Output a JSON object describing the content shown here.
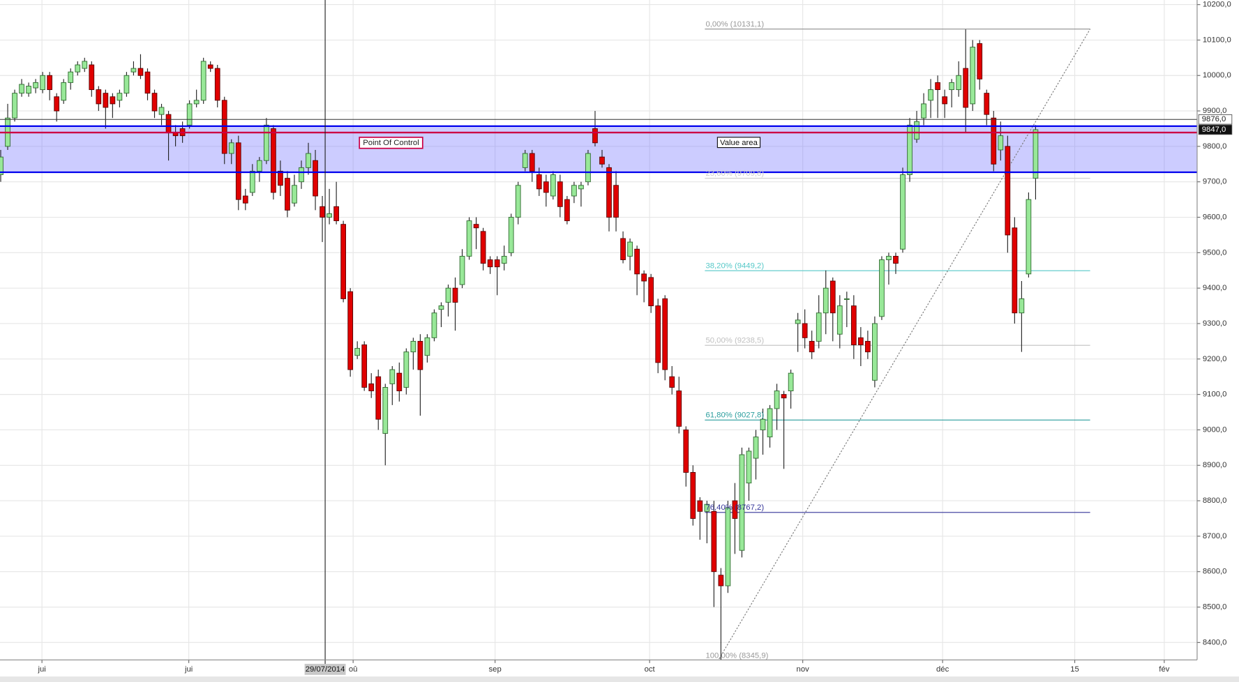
{
  "chart_data": {
    "type": "candlestick",
    "up_color": "#98e898",
    "down_color": "#e00000",
    "xlim": [
      -0.1,
      171.1
    ],
    "ylim": [
      8351,
      10213
    ],
    "grid": true,
    "xticks": [
      {
        "value": 5.9,
        "label": "jui"
      },
      {
        "value": 26.9,
        "label": "jui"
      },
      {
        "value": 50.4,
        "label": "oû"
      },
      {
        "value": 70.7,
        "label": "sep"
      },
      {
        "value": 92.8,
        "label": "oct"
      },
      {
        "value": 114.7,
        "label": "nov"
      },
      {
        "value": 134.7,
        "label": "déc"
      },
      {
        "value": 153.6,
        "label": "15"
      },
      {
        "value": 166.4,
        "label": "fév"
      }
    ],
    "yticks": [
      {
        "value": 8400,
        "label": "8400,0"
      },
      {
        "value": 8500,
        "label": "8500,0"
      },
      {
        "value": 8600,
        "label": "8600,0"
      },
      {
        "value": 8700,
        "label": "8700,0"
      },
      {
        "value": 8800,
        "label": "8800,0"
      },
      {
        "value": 8900,
        "label": "8900,0"
      },
      {
        "value": 9000,
        "label": "9000,0"
      },
      {
        "value": 9100,
        "label": "9100,0"
      },
      {
        "value": 9200,
        "label": "9200,0"
      },
      {
        "value": 9300,
        "label": "9300,0"
      },
      {
        "value": 9400,
        "label": "9400,0"
      },
      {
        "value": 9500,
        "label": "9500,0"
      },
      {
        "value": 9600,
        "label": "9600,0"
      },
      {
        "value": 9700,
        "label": "9700,0"
      },
      {
        "value": 9800,
        "label": "9800,0"
      },
      {
        "value": 9900,
        "label": "9900,0"
      },
      {
        "value": 10000,
        "label": "10000,0"
      },
      {
        "value": 10100,
        "label": "10100,0"
      },
      {
        "value": 10200,
        "label": "10200,0"
      }
    ],
    "price_labels": [
      {
        "value": 9876,
        "label": "9876,0"
      },
      {
        "value": 9847,
        "label": "9847,0"
      }
    ],
    "value_area": {
      "label": "Value area",
      "high": 9857,
      "low": 9727,
      "color": "#0000ee",
      "x": 102.5
    },
    "poc": {
      "label": "Point Of Control",
      "value": 9839,
      "color": "#cc0044",
      "x": 51.3
    },
    "cursor": {
      "x": 46.4,
      "label": "29/07/2014"
    },
    "fib": {
      "x": [
        100.7,
        155.8
      ],
      "trend_x": [
        102.5,
        155.8
      ],
      "levels": [
        {
          "value": 10131.1,
          "label": "0,00% (10131,1)",
          "color": "#999999"
        },
        {
          "value": 9709.8,
          "label": "23,60% (9709,8)",
          "color": "#cccccc"
        },
        {
          "value": 9449.2,
          "label": "38,20% (9449,2)",
          "color": "#55c8c8"
        },
        {
          "value": 9238.5,
          "label": "50,00% (9238,5)",
          "color": "#c0c0c0"
        },
        {
          "value": 9027.8,
          "label": "61,80% (9027,8)",
          "color": "#2a9d9d"
        },
        {
          "value": 8767.2,
          "label": "76,40% (8767,2)",
          "color": "#333399"
        },
        {
          "value": 8345.9,
          "label": "100,00% (8345,9)",
          "color": "#999999"
        }
      ]
    },
    "ohlc": [
      [
        9720,
        9790,
        9700,
        9770
      ],
      [
        9800,
        9920,
        9790,
        9880
      ],
      [
        9880,
        9960,
        9870,
        9950
      ],
      [
        9950,
        9990,
        9940,
        9975
      ],
      [
        9950,
        9980,
        9940,
        9970
      ],
      [
        9965,
        9990,
        9950,
        9980
      ],
      [
        9960,
        10010,
        9950,
        10000
      ],
      [
        10000,
        10010,
        9930,
        9960
      ],
      [
        9940,
        9950,
        9870,
        9900
      ],
      [
        9930,
        9990,
        9920,
        9980
      ],
      [
        9980,
        10020,
        9960,
        10010
      ],
      [
        10010,
        10040,
        10000,
        10030
      ],
      [
        10020,
        10050,
        10010,
        10040
      ],
      [
        10030,
        10040,
        9940,
        9960
      ],
      [
        9960,
        9970,
        9900,
        9920
      ],
      [
        9950,
        9960,
        9850,
        9910
      ],
      [
        9940,
        9950,
        9880,
        9920
      ],
      [
        9930,
        9960,
        9910,
        9950
      ],
      [
        9950,
        10010,
        9940,
        10000
      ],
      [
        10010,
        10040,
        10000,
        10020
      ],
      [
        10020,
        10060,
        9990,
        10000
      ],
      [
        10010,
        10020,
        9930,
        9950
      ],
      [
        9950,
        9960,
        9880,
        9900
      ],
      [
        9890,
        9920,
        9860,
        9910
      ],
      [
        9890,
        9900,
        9760,
        9840
      ],
      [
        9840,
        9860,
        9800,
        9830
      ],
      [
        9850,
        9870,
        9810,
        9830
      ],
      [
        9860,
        9930,
        9850,
        9920
      ],
      [
        9920,
        9960,
        9910,
        9930
      ],
      [
        9930,
        10050,
        9920,
        10040
      ],
      [
        10030,
        10040,
        10010,
        10020
      ],
      [
        10020,
        10030,
        9910,
        9930
      ],
      [
        9930,
        9940,
        9750,
        9780
      ],
      [
        9780,
        9820,
        9750,
        9810
      ],
      [
        9810,
        9830,
        9620,
        9650
      ],
      [
        9660,
        9680,
        9620,
        9640
      ],
      [
        9670,
        9750,
        9660,
        9730
      ],
      [
        9730,
        9770,
        9700,
        9760
      ],
      [
        9760,
        9880,
        9750,
        9860
      ],
      [
        9850,
        9860,
        9650,
        9670
      ],
      [
        9730,
        9760,
        9660,
        9690
      ],
      [
        9710,
        9730,
        9600,
        9620
      ],
      [
        9640,
        9720,
        9630,
        9690
      ],
      [
        9700,
        9760,
        9680,
        9740
      ],
      [
        9740,
        9810,
        9720,
        9780
      ],
      [
        9760,
        9790,
        9620,
        9660
      ],
      [
        9630,
        9660,
        9530,
        9600
      ],
      [
        9600,
        9680,
        9580,
        9610
      ],
      [
        9630,
        9700,
        9580,
        9590
      ],
      [
        9580,
        9590,
        9360,
        9370
      ],
      [
        9390,
        9400,
        9150,
        9170
      ],
      [
        9210,
        9250,
        9200,
        9230
      ],
      [
        9240,
        9250,
        9110,
        9120
      ],
      [
        9130,
        9160,
        9090,
        9110
      ],
      [
        9150,
        9170,
        9000,
        9030
      ],
      [
        8990,
        9130,
        8900,
        9120
      ],
      [
        9130,
        9180,
        9070,
        9170
      ],
      [
        9160,
        9190,
        9080,
        9110
      ],
      [
        9120,
        9230,
        9100,
        9220
      ],
      [
        9220,
        9260,
        9170,
        9250
      ],
      [
        9250,
        9270,
        9040,
        9170
      ],
      [
        9210,
        9270,
        9190,
        9260
      ],
      [
        9260,
        9340,
        9250,
        9330
      ],
      [
        9340,
        9360,
        9290,
        9350
      ],
      [
        9360,
        9410,
        9320,
        9400
      ],
      [
        9400,
        9430,
        9280,
        9360
      ],
      [
        9410,
        9510,
        9400,
        9490
      ],
      [
        9490,
        9600,
        9480,
        9590
      ],
      [
        9580,
        9600,
        9510,
        9570
      ],
      [
        9560,
        9570,
        9450,
        9470
      ],
      [
        9480,
        9490,
        9440,
        9460
      ],
      [
        9480,
        9490,
        9380,
        9460
      ],
      [
        9470,
        9520,
        9450,
        9490
      ],
      [
        9500,
        9610,
        9490,
        9600
      ],
      [
        9600,
        9700,
        9580,
        9690
      ],
      [
        9740,
        9790,
        9730,
        9780
      ],
      [
        9780,
        9790,
        9700,
        9730
      ],
      [
        9720,
        9740,
        9660,
        9680
      ],
      [
        9700,
        9720,
        9630,
        9670
      ],
      [
        9660,
        9730,
        9650,
        9720
      ],
      [
        9700,
        9720,
        9600,
        9630
      ],
      [
        9650,
        9660,
        9580,
        9590
      ],
      [
        9660,
        9700,
        9640,
        9690
      ],
      [
        9680,
        9700,
        9630,
        9690
      ],
      [
        9700,
        9790,
        9690,
        9780
      ],
      [
        9850,
        9900,
        9800,
        9810
      ],
      [
        9770,
        9790,
        9740,
        9750
      ],
      [
        9740,
        9750,
        9560,
        9600
      ],
      [
        9690,
        9730,
        9560,
        9600
      ],
      [
        9540,
        9560,
        9470,
        9480
      ],
      [
        9490,
        9540,
        9450,
        9530
      ],
      [
        9510,
        9520,
        9380,
        9440
      ],
      [
        9440,
        9450,
        9360,
        9420
      ],
      [
        9430,
        9440,
        9330,
        9350
      ],
      [
        9350,
        9370,
        9160,
        9190
      ],
      [
        9370,
        9380,
        9140,
        9170
      ],
      [
        9150,
        9180,
        9100,
        9120
      ],
      [
        9110,
        9150,
        8990,
        9010
      ],
      [
        9000,
        9010,
        8840,
        8880
      ],
      [
        8880,
        8900,
        8730,
        8750
      ],
      [
        8800,
        8810,
        8690,
        8770
      ],
      [
        8770,
        8800,
        8680,
        8790
      ],
      [
        8770,
        8800,
        8500,
        8600
      ],
      [
        8590,
        8610,
        8350,
        8560
      ],
      [
        8560,
        8800,
        8540,
        8780
      ],
      [
        8800,
        8850,
        8650,
        8750
      ],
      [
        8660,
        8950,
        8640,
        8930
      ],
      [
        8850,
        8950,
        8800,
        8940
      ],
      [
        8920,
        9000,
        8860,
        8980
      ],
      [
        9000,
        9060,
        8930,
        9030
      ],
      [
        8980,
        9070,
        8950,
        9060
      ],
      [
        9060,
        9130,
        9000,
        9110
      ],
      [
        9100,
        9110,
        8890,
        9090
      ],
      [
        9110,
        9170,
        9060,
        9160
      ],
      [
        9300,
        9330,
        9220,
        9310
      ],
      [
        9300,
        9340,
        9230,
        9260
      ],
      [
        9250,
        9280,
        9200,
        9220
      ],
      [
        9250,
        9380,
        9230,
        9330
      ],
      [
        9330,
        9450,
        9270,
        9400
      ],
      [
        9420,
        9430,
        9250,
        9330
      ],
      [
        9270,
        9380,
        9230,
        9350
      ],
      [
        9370,
        9390,
        9290,
        9370
      ],
      [
        9350,
        9380,
        9200,
        9240
      ],
      [
        9260,
        9290,
        9180,
        9240
      ],
      [
        9250,
        9280,
        9200,
        9220
      ],
      [
        9140,
        9320,
        9120,
        9300
      ],
      [
        9320,
        9490,
        9310,
        9480
      ],
      [
        9480,
        9500,
        9410,
        9490
      ],
      [
        9490,
        9500,
        9440,
        9470
      ],
      [
        9510,
        9740,
        9500,
        9720
      ],
      [
        9720,
        9880,
        9700,
        9860
      ],
      [
        9820,
        9900,
        9810,
        9870
      ],
      [
        9880,
        9950,
        9860,
        9920
      ],
      [
        9930,
        9990,
        9880,
        9960
      ],
      [
        9980,
        10000,
        9880,
        9960
      ],
      [
        9940,
        9960,
        9880,
        9920
      ],
      [
        9960,
        9990,
        9910,
        9980
      ],
      [
        9960,
        10040,
        9940,
        10000
      ],
      [
        10020,
        10130,
        9840,
        9910
      ],
      [
        9920,
        10100,
        9900,
        10080
      ],
      [
        10090,
        10100,
        9960,
        9990
      ],
      [
        9950,
        9960,
        9860,
        9890
      ],
      [
        9880,
        9900,
        9730,
        9750
      ],
      [
        9790,
        9870,
        9760,
        9830
      ],
      [
        9800,
        9830,
        9500,
        9550
      ],
      [
        9570,
        9600,
        9300,
        9330
      ],
      [
        9330,
        9420,
        9220,
        9370
      ],
      [
        9440,
        9670,
        9430,
        9650
      ],
      [
        9710,
        9860,
        9650,
        9847
      ]
    ]
  }
}
